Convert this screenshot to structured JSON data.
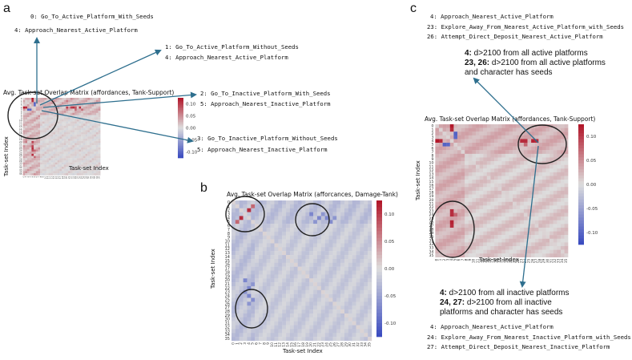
{
  "panels": {
    "a": {
      "letter": "a",
      "title": "Avg. Task-set Overlap Matrix (affordances, Tank-Support)",
      "xlabel": "Task-set Index",
      "ylabel": "Task-set Index",
      "cbar_ticks": [
        "0.10",
        "0.05",
        "0.00",
        "-0.05",
        "-0.10"
      ],
      "annotations": [
        [
          "0: Go_To_Active_Platform_With_Seeds",
          "4: Approach_Nearest_Active_Platform"
        ],
        [
          "1: Go_To_Active_Platform_Without_Seeds",
          "4: Approach_Nearest_Active_Platform"
        ],
        [
          "2: Go_To_Inactive_Platform_With_Seeds",
          "5: Approach_Nearest_Inactive_Platform"
        ],
        [
          "3: Go_To_Inactive_Platform_Without_Seeds",
          "5: Approach_Nearest_Inactive_Platform"
        ]
      ]
    },
    "b": {
      "letter": "b",
      "title": "Avg. Task-set Overlap Matrix (afforcances, Damage-Tank)",
      "xlabel": "Task-set Index",
      "ylabel": "Task-set Index",
      "cbar_ticks": [
        "0.10",
        "0.05",
        "0.00",
        "-0.05",
        "-0.10"
      ]
    },
    "c": {
      "letter": "c",
      "title": "Avg. Task-set Overlap Matrix (affordances, Tank-Support)",
      "xlabel": "Task-set Index",
      "ylabel": "Task-set Index",
      "cbar_ticks": [
        "0.10",
        "0.05",
        "0.00",
        "-0.05",
        "-0.10"
      ],
      "top_list": [
        "4: Approach_Nearest_Active_Platform",
        "23: Explore_Away_From_Nearest_Active_Platform_with_Seeds",
        "26: Attempt_Direct_Deposit_Nearest_Active_Platform"
      ],
      "top_cond": {
        "l1_key": "4:",
        "l1_text": " d>2100 from all active platforms",
        "l2_key": "23, 26:",
        "l2_text": " d>2100 from all active platforms",
        "l3_text": "and character has seeds"
      },
      "bottom_cond": {
        "l1_key": "4:",
        "l1_text": " d>2100 from all inactive platforms",
        "l2_key": "24, 27:",
        "l2_text": " d>2100 from all inactive",
        "l3_text": "platforms and character has seeds"
      },
      "bottom_list": [
        "4: Approach_Nearest_Active_Platform",
        "24: Explore_Away_From_Nearest_Inactive_Platform_with_Seeds",
        "27: Attempt_Direct_Deposit_Nearest_Inactive_Platform"
      ]
    }
  },
  "colors": {
    "red_strong": "#b2182b",
    "blue_strong": "#3b4cc0",
    "neutral": "#dddddd",
    "arrow": "#2e6f8e"
  }
}
